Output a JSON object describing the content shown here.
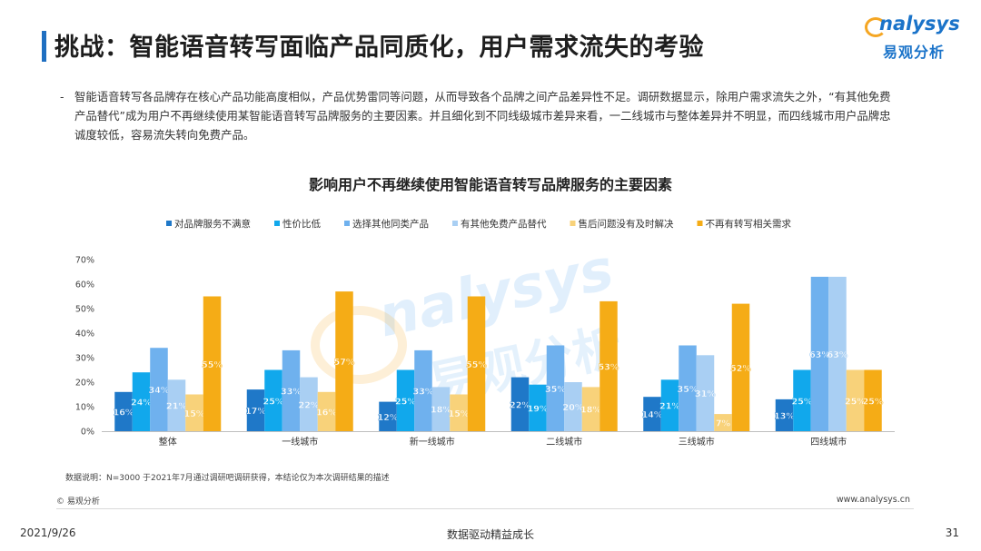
{
  "header": {
    "title": "挑战：智能语音转写面临产品同质化，用户需求流失的考验",
    "logo_top": "nalysys",
    "logo_bottom": "易观分析"
  },
  "description": {
    "dash": "-",
    "text": "智能语音转写各品牌存在核心产品功能高度相似，产品优势雷同等问题，从而导致各个品牌之间产品差异性不足。调研数据显示，除用户需求流失之外，“有其他免费产品替代”成为用户不再继续使用某智能语音转写品牌服务的主要因素。并且细化到不同线级城市差异来看，一二线城市与整体差异并不明显，而四线城市用户品牌忠诚度较低，容易流失转向免费产品。"
  },
  "footer": {
    "note": "数据说明：N=3000  于2021年7月通过调研吧调研获得，本结论仅为本次调研结果的描述",
    "copyright": "© 易观分析",
    "site": "www.analysys.cn",
    "date": "2021/9/26",
    "slogan": "数据驱动精益成长",
    "page_number": "31"
  },
  "chart_data": {
    "type": "bar",
    "title": "影响用户不再继续使用智能语音转写品牌服务的主要因素",
    "categories": [
      "整体",
      "一线城市",
      "新一线城市",
      "二线城市",
      "三线城市",
      "四线城市"
    ],
    "series": [
      {
        "name": "对品牌服务不满意",
        "color": "#1f78c8",
        "values": [
          16,
          17,
          12,
          22,
          14,
          13
        ]
      },
      {
        "name": "性价比低",
        "color": "#11a8ec",
        "values": [
          24,
          25,
          25,
          19,
          21,
          25
        ]
      },
      {
        "name": "选择其他同类产品",
        "color": "#6fb1ee",
        "values": [
          34,
          33,
          33,
          35,
          35,
          63
        ]
      },
      {
        "name": "有其他免费产品替代",
        "color": "#a9cff3",
        "values": [
          21,
          22,
          18,
          20,
          31,
          63
        ]
      },
      {
        "name": "售后问题没有及时解决",
        "color": "#f8d27a",
        "values": [
          15,
          16,
          15,
          18,
          7,
          25
        ]
      },
      {
        "name": "不再有转写相关需求",
        "color": "#f5ac16",
        "values": [
          55,
          57,
          55,
          53,
          52,
          25
        ]
      }
    ],
    "ylim": [
      0,
      70
    ],
    "yticks": [
      0,
      10,
      20,
      30,
      40,
      50,
      60,
      70
    ],
    "value_suffix": "%",
    "legend_position": "top",
    "grid": false,
    "watermark": "nalysys 易观分析"
  }
}
